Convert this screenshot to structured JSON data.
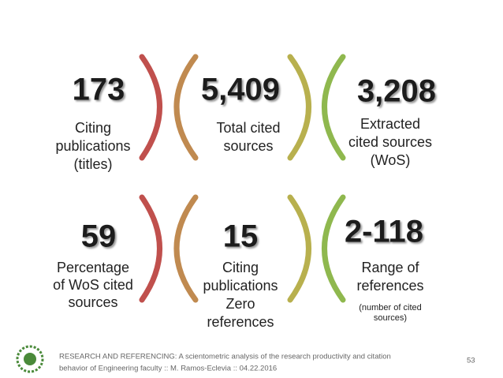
{
  "stats": [
    {
      "value": "173",
      "label": [
        "Citing",
        "publications",
        "(titles)"
      ]
    },
    {
      "value": "5,409",
      "label": [
        "Total cited",
        "sources"
      ]
    },
    {
      "value": "3,208",
      "label": [
        "Extracted",
        "cited sources",
        "(WoS)"
      ]
    },
    {
      "value": "59",
      "label": [
        "Percentage",
        "of WoS cited",
        "sources"
      ]
    },
    {
      "value": "15",
      "label": [
        "Citing",
        "publications",
        "Zero",
        "references"
      ]
    },
    {
      "value": "2-118",
      "label": [
        "Range of",
        "references"
      ],
      "note": [
        "(number of cited",
        "sources)"
      ]
    }
  ],
  "footer": {
    "text": [
      "RESEARCH AND REFERENCING: A scientometric analysis of the research productivity and citation",
      "behavior of Engineering faculty :: M. Ramos-Eclevia :: 04.22.2016"
    ],
    "page": "53"
  }
}
